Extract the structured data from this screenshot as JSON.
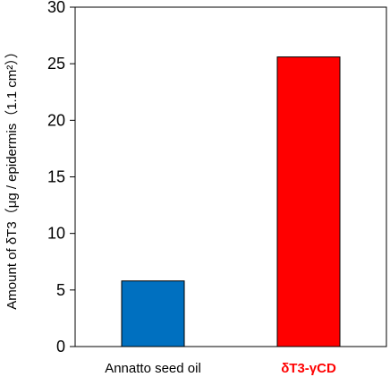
{
  "chart_data": {
    "type": "bar",
    "categories": [
      "Annatto seed oil",
      "δT3-γCD"
    ],
    "values": [
      5.8,
      25.6
    ],
    "bar_colors": [
      "#0070C0",
      "#FF0000"
    ],
    "category_label_colors": [
      "#000000",
      "#FF0000"
    ],
    "category_label_bold": [
      false,
      true
    ],
    "title": "",
    "xlabel": "",
    "ylabel": "Amount of δT3（μg / epidermis（1.1 cm²））",
    "ylim": [
      0,
      30
    ],
    "yticks": [
      0,
      5,
      10,
      15,
      20,
      25,
      30
    ],
    "grid": false,
    "legend": "none"
  }
}
